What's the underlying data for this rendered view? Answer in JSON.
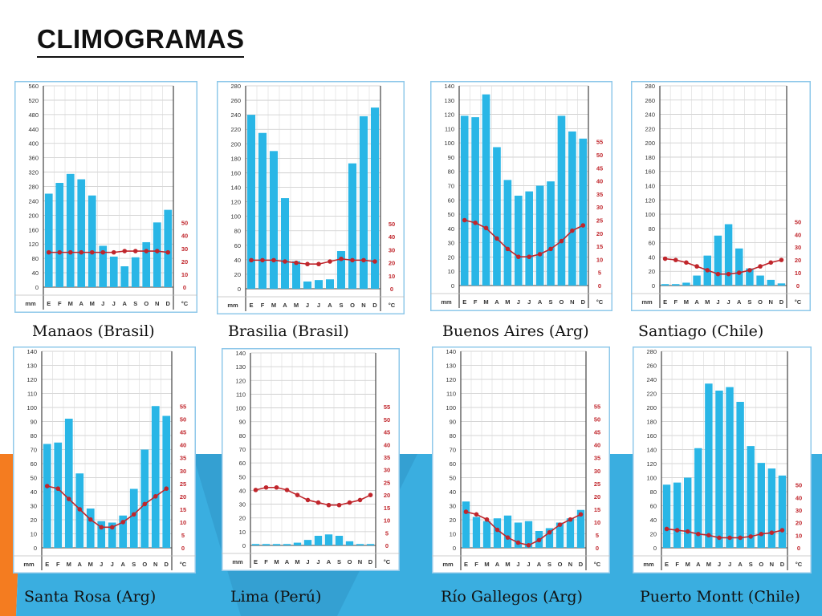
{
  "slide": {
    "title": "CLIMOGRAMAS",
    "colors": {
      "bar": "#29b6e6",
      "temp": "#c0262c",
      "frame": "#8fc8ea",
      "accent_blue": "#3aaee0",
      "accent_orange": "#f47c20"
    }
  },
  "axis_common": {
    "months": [
      "E",
      "F",
      "M",
      "A",
      "M",
      "J",
      "J",
      "A",
      "S",
      "O",
      "N",
      "D"
    ],
    "precip_unit": "mm",
    "temp_unit": "°C"
  },
  "chart_data": [
    {
      "type": "bar+line",
      "title": "Manaos (Brasil)",
      "precip": [
        260,
        290,
        315,
        300,
        255,
        115,
        85,
        58,
        83,
        125,
        180,
        215
      ],
      "temp": [
        27,
        27,
        27,
        27,
        27,
        27,
        27,
        28,
        28,
        28,
        28,
        27
      ],
      "ylim_precip": [
        0,
        560
      ],
      "precip_ticks": [
        0,
        40,
        80,
        120,
        160,
        200,
        240,
        280,
        320,
        360,
        400,
        440,
        480,
        520,
        560
      ],
      "ylim_temp": [
        0,
        50
      ],
      "temp_ticks": [
        0,
        10,
        20,
        30,
        40,
        50
      ]
    },
    {
      "type": "bar+line",
      "title": "Brasilia (Brasil)",
      "precip": [
        240,
        215,
        190,
        125,
        38,
        10,
        12,
        13,
        52,
        173,
        238,
        250
      ],
      "temp": [
        22,
        22,
        22,
        21,
        20,
        19,
        19,
        21,
        23,
        22,
        22,
        21
      ],
      "ylim_precip": [
        0,
        280
      ],
      "precip_ticks": [
        0,
        20,
        40,
        60,
        80,
        100,
        120,
        140,
        160,
        180,
        200,
        220,
        240,
        260,
        280
      ],
      "ylim_temp": [
        0,
        50
      ],
      "temp_ticks": [
        0,
        10,
        20,
        30,
        40,
        50
      ]
    },
    {
      "type": "bar+line",
      "title": "Buenos Aires (Arg)",
      "precip": [
        119,
        118,
        134,
        97,
        74,
        63,
        66,
        70,
        73,
        119,
        108,
        103
      ],
      "temp": [
        25,
        24,
        22,
        18,
        14,
        11,
        11,
        12,
        14,
        17,
        21,
        23
      ],
      "ylim_precip": [
        0,
        140
      ],
      "precip_ticks": [
        0,
        10,
        20,
        30,
        40,
        50,
        60,
        70,
        80,
        90,
        100,
        110,
        120,
        130,
        140
      ],
      "ylim_temp": [
        0,
        55
      ],
      "temp_ticks": [
        0,
        5,
        10,
        15,
        20,
        25,
        30,
        35,
        40,
        45,
        50,
        55
      ]
    },
    {
      "type": "bar+line",
      "title": "Santiago (Chile)",
      "precip": [
        2,
        2,
        4,
        14,
        42,
        70,
        86,
        52,
        24,
        14,
        8,
        3
      ],
      "temp": [
        21,
        20,
        18,
        15,
        12,
        9,
        9,
        10,
        12,
        15,
        18,
        20
      ],
      "ylim_precip": [
        0,
        280
      ],
      "precip_ticks": [
        0,
        20,
        40,
        60,
        80,
        100,
        120,
        140,
        160,
        180,
        200,
        220,
        240,
        260,
        280
      ],
      "ylim_temp": [
        0,
        50
      ],
      "temp_ticks": [
        0,
        10,
        20,
        30,
        40,
        50
      ]
    },
    {
      "type": "bar+line",
      "title": "Santa Rosa (Arg)",
      "precip": [
        74,
        75,
        92,
        53,
        28,
        19,
        18,
        23,
        42,
        70,
        101,
        94
      ],
      "temp": [
        24,
        23,
        19,
        15,
        11,
        8,
        8,
        10,
        13,
        17,
        20,
        23
      ],
      "ylim_precip": [
        0,
        140
      ],
      "precip_ticks": [
        0,
        10,
        20,
        30,
        40,
        50,
        60,
        70,
        80,
        90,
        100,
        110,
        120,
        130,
        140
      ],
      "ylim_temp": [
        0,
        55
      ],
      "temp_ticks": [
        0,
        5,
        10,
        15,
        20,
        25,
        30,
        35,
        40,
        45,
        50,
        55
      ]
    },
    {
      "type": "bar+line",
      "title": "Lima (Perú)",
      "precip": [
        1,
        1,
        1,
        1,
        2,
        4,
        7,
        8,
        7,
        3,
        1,
        1
      ],
      "temp": [
        22,
        23,
        23,
        22,
        20,
        18,
        17,
        16,
        16,
        17,
        18,
        20
      ],
      "ylim_precip": [
        0,
        140
      ],
      "precip_ticks": [
        0,
        10,
        20,
        30,
        40,
        50,
        60,
        70,
        80,
        90,
        100,
        110,
        120,
        130,
        140
      ],
      "ylim_temp": [
        0,
        55
      ],
      "temp_ticks": [
        0,
        5,
        10,
        15,
        20,
        25,
        30,
        35,
        40,
        45,
        50,
        55
      ]
    },
    {
      "type": "bar+line",
      "title": "Río Gallegos (Arg)",
      "precip": [
        33,
        22,
        19,
        21,
        23,
        18,
        19,
        12,
        14,
        18,
        21,
        27
      ],
      "temp": [
        14,
        13,
        11,
        7,
        4,
        2,
        1,
        3,
        6,
        9,
        11,
        13
      ],
      "ylim_precip": [
        0,
        140
      ],
      "precip_ticks": [
        0,
        10,
        20,
        30,
        40,
        50,
        60,
        70,
        80,
        90,
        100,
        110,
        120,
        130,
        140
      ],
      "ylim_temp": [
        0,
        55
      ],
      "temp_ticks": [
        0,
        5,
        10,
        15,
        20,
        25,
        30,
        35,
        40,
        45,
        50,
        55
      ]
    },
    {
      "type": "bar+line",
      "title": "Puerto Montt (Chile)",
      "precip": [
        90,
        93,
        100,
        142,
        234,
        224,
        229,
        208,
        145,
        121,
        113,
        103
      ],
      "temp": [
        15,
        14,
        13,
        11,
        10,
        8,
        8,
        8,
        9,
        11,
        12,
        14
      ],
      "ylim_precip": [
        0,
        280
      ],
      "precip_ticks": [
        0,
        20,
        40,
        60,
        80,
        100,
        120,
        140,
        160,
        180,
        200,
        220,
        240,
        260,
        280
      ],
      "ylim_temp": [
        0,
        50
      ],
      "temp_ticks": [
        0,
        10,
        20,
        30,
        40,
        50
      ]
    }
  ]
}
